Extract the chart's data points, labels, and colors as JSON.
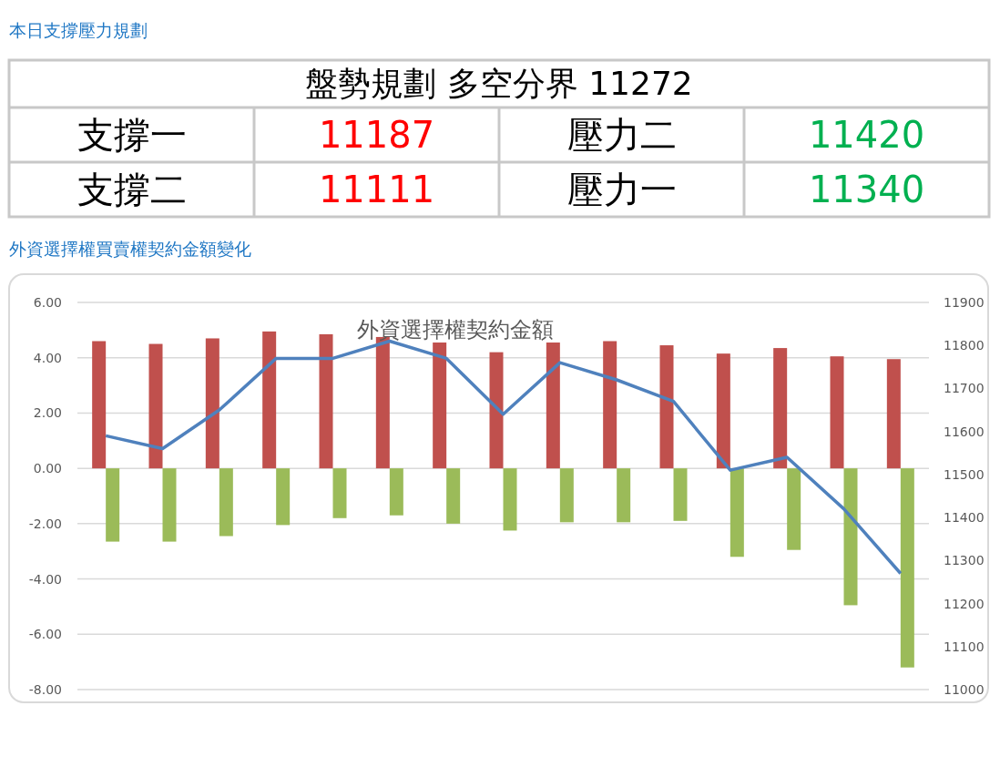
{
  "chart_data": [
    {
      "type": "other",
      "title": "本日支撐壓力規劃",
      "subtitle": "盤勢規劃 多空分界 11272",
      "annotations": [
        "支撐一",
        "11187",
        "壓力二",
        "11420",
        "支撐二",
        "11111",
        "壓力一",
        "11340"
      ],
      "colors": [
        "#000000",
        "#ff0000",
        "#000000",
        "#00b050",
        "#000000",
        "#ff0000",
        "#000000",
        "#00b050"
      ]
    },
    {
      "type": "bar",
      "title": "外資選擇權買賣權契約金額變化",
      "subtitle": "外資選擇權契約金額",
      "categories": [
        null,
        null,
        null,
        null,
        null,
        null,
        null,
        null,
        null,
        null,
        null,
        null,
        null,
        null,
        null
      ],
      "series": [
        {
          "color": "#c0504d",
          "values": [
            4.6,
            4.5,
            4.7,
            4.95,
            4.85,
            4.75,
            4.55,
            4.2,
            4.55,
            4.6,
            4.45,
            4.15,
            4.35,
            4.05,
            3.95
          ]
        },
        {
          "color": "#9bbb59",
          "values": [
            -2.65,
            -2.65,
            -2.45,
            -2.05,
            -1.8,
            -1.7,
            -2.0,
            -2.25,
            -1.95,
            -1.95,
            -1.9,
            -3.2,
            -2.95,
            -4.95,
            -7.2
          ]
        },
        {
          "type": "line",
          "axis": "y2",
          "color": "#4f81bd",
          "values": [
            11590,
            11560,
            11650,
            11770,
            11770,
            11810,
            11770,
            11640,
            11760,
            11720,
            11670,
            11510,
            11540,
            11420,
            11270
          ]
        }
      ],
      "ylim": [
        -8,
        6
      ],
      "yticks": [
        {
          "value": -8,
          "label": "-8.00"
        },
        {
          "value": -6,
          "label": "-6.00"
        },
        {
          "value": -4,
          "label": "-4.00"
        },
        {
          "value": -2,
          "label": "-2.00"
        },
        {
          "value": 0,
          "label": "0.00"
        },
        {
          "value": 2,
          "label": "2.00"
        },
        {
          "value": 4,
          "label": "4.00"
        },
        {
          "value": 6,
          "label": "6.00"
        }
      ],
      "y2lim": [
        11000,
        11900
      ],
      "y2ticks": [
        11000,
        11100,
        11200,
        11300,
        11400,
        11500,
        11600,
        11700,
        11800,
        11900
      ],
      "grid": "y"
    }
  ]
}
